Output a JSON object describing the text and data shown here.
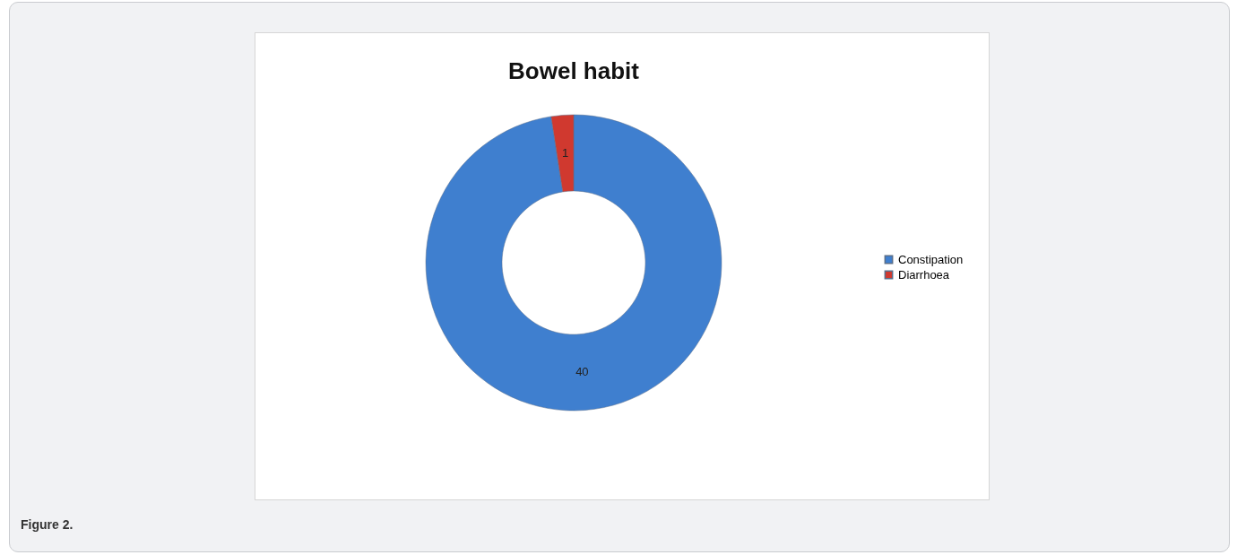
{
  "chart_data": {
    "type": "donut",
    "title": "Bowel habit",
    "categories": [
      "Constipation",
      "Diarrhoea"
    ],
    "values": [
      40,
      1
    ],
    "colors": [
      "#3f7fcf",
      "#d0392f"
    ],
    "data_labels": true,
    "legend": "right",
    "annotations": [
      "Figure 2."
    ]
  }
}
